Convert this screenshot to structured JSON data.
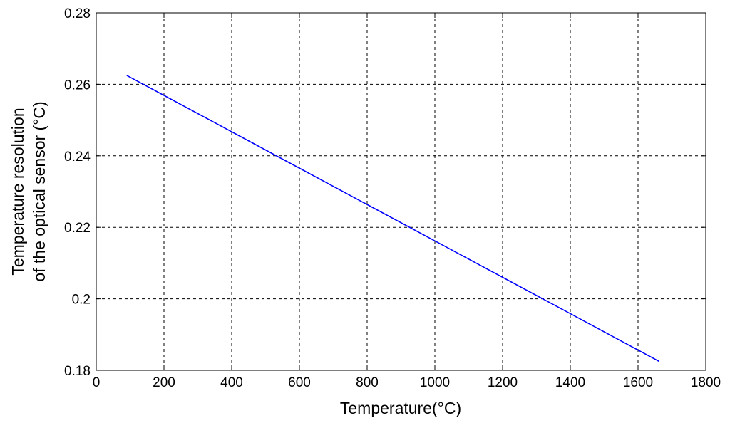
{
  "chart_data": {
    "type": "line",
    "xlabel": "Temperature(°C)",
    "ylabel_lines": [
      "Temperature resolution",
      "of the optical sensor (°C)"
    ],
    "xlim": [
      0,
      1800
    ],
    "ylim": [
      0.18,
      0.28
    ],
    "x_ticks": [
      0,
      200,
      400,
      600,
      800,
      1000,
      1200,
      1400,
      1600,
      1800
    ],
    "x_tick_labels": [
      "0",
      "200",
      "400",
      "600",
      "800",
      "1000",
      "1200",
      "1400",
      "1600",
      "1800"
    ],
    "y_ticks": [
      0.18,
      0.2,
      0.22,
      0.24,
      0.26,
      0.28
    ],
    "y_tick_labels": [
      "0.18",
      "0.2",
      "0.22",
      "0.24",
      "0.26",
      "0.28"
    ],
    "grid": true,
    "grid_style": "dashed",
    "series": [
      {
        "color": "#0000ff",
        "x": [
          90,
          1662
        ],
        "y": [
          0.2625,
          0.1825
        ]
      }
    ]
  }
}
